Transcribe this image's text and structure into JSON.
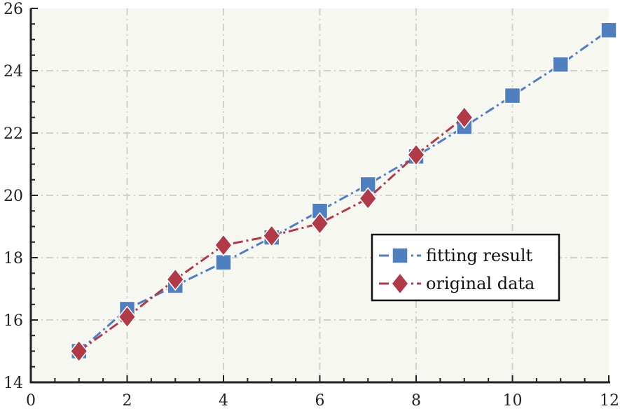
{
  "colors": {
    "plot_background": "#f7f7f2",
    "grid": "#d2d2cc",
    "axis": "#222222",
    "fitting_result": "#4f7fbf",
    "original_data": "#b03a48"
  },
  "chart_data": {
    "type": "line",
    "title": "",
    "xlabel": "",
    "ylabel": "",
    "xlim": [
      0,
      12
    ],
    "ylim": [
      14,
      26
    ],
    "grid": true,
    "legend_position": "lower-right",
    "xticks": [
      "0",
      "2",
      "4",
      "6",
      "8",
      "10",
      "12"
    ],
    "yticks": [
      "14",
      "16",
      "18",
      "20",
      "22",
      "24",
      "26"
    ],
    "series": [
      {
        "name": "fitting result",
        "marker": "square",
        "line_style": "dash-dot",
        "color": "#4f7fbf",
        "x": [
          1,
          2,
          3,
          4,
          5,
          6,
          7,
          8,
          9,
          10,
          11,
          12
        ],
        "y": [
          15.0,
          16.35,
          17.1,
          17.85,
          18.65,
          19.5,
          20.35,
          21.25,
          22.2,
          23.2,
          24.2,
          25.3
        ]
      },
      {
        "name": "original data",
        "marker": "diamond",
        "line_style": "dash-dot",
        "color": "#b03a48",
        "x": [
          1,
          2,
          3,
          4,
          5,
          6,
          7,
          8,
          9
        ],
        "y": [
          15.0,
          16.1,
          17.3,
          18.4,
          18.7,
          19.1,
          19.9,
          21.3,
          22.5
        ]
      }
    ]
  }
}
